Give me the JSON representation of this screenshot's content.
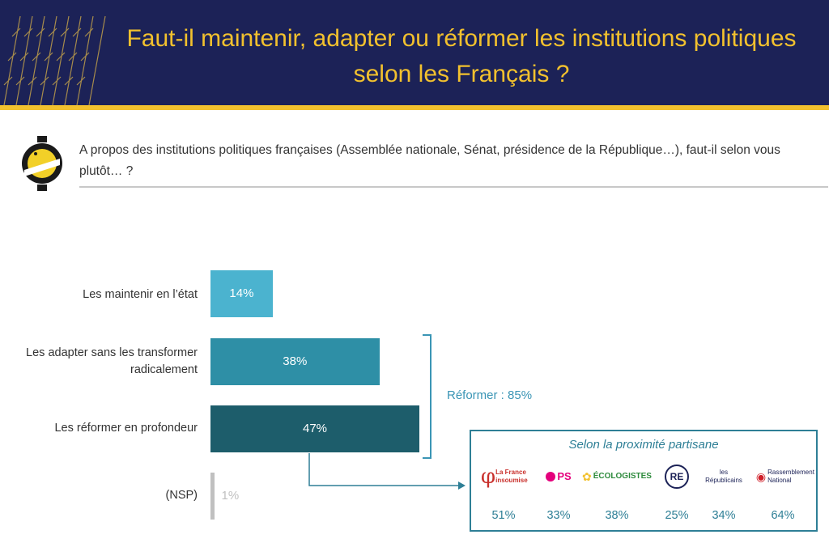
{
  "header": {
    "title_line1": "Faut-il maintenir, adapter ou réformer les institutions politiques",
    "title_line2": "selon les Français ?"
  },
  "question": "A propos des institutions politiques françaises (Assemblée nationale, Sénat, présidence de la République…), faut-il selon vous plutôt… ?",
  "colors": {
    "header_bg": "#1c2257",
    "accent_yellow": "#f2c12e",
    "bar_light": "#4bb3cf",
    "bar_mid": "#2e8fa6",
    "bar_dark": "#1d5d6b",
    "bar_nsp": "#c0c0c0",
    "teal_text": "#2e7f96"
  },
  "chart_data": {
    "type": "bar",
    "orientation": "horizontal",
    "categories": [
      "Les maintenir en l’état",
      "Les adapter sans les transformer radicalement",
      "Les réformer en profondeur",
      "(NSP)"
    ],
    "values": [
      14,
      38,
      47,
      1
    ],
    "value_labels": [
      "14%",
      "38%",
      "47%",
      "1%"
    ],
    "bracket_annotation": "Réformer : 85%",
    "partisan": {
      "title": "Selon la proximité partisane",
      "parties": [
        {
          "logo_text": "La France insoumise",
          "value": 51,
          "label": "51%"
        },
        {
          "logo_text": "PS",
          "value": 33,
          "label": "33%"
        },
        {
          "logo_text": "ÉCOLOGISTES",
          "value": 38,
          "label": "38%"
        },
        {
          "logo_text": "RE",
          "value": 25,
          "label": "25%"
        },
        {
          "logo_text": "les Républicains",
          "value": 34,
          "label": "34%"
        },
        {
          "logo_text": "Rassemblement National",
          "value": 64,
          "label": "64%"
        }
      ]
    }
  }
}
